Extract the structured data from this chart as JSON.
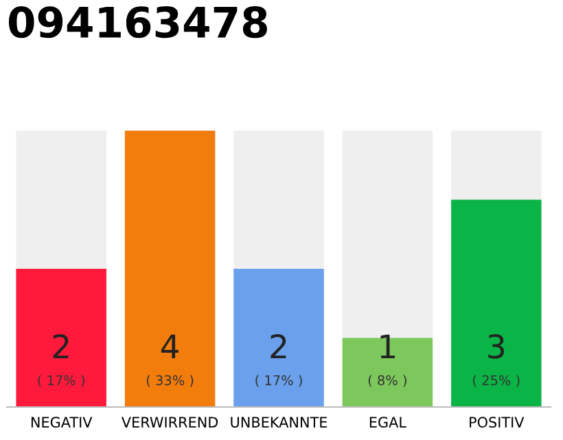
{
  "chart_data": {
    "type": "bar",
    "title": "094163478",
    "categories": [
      "NEGATIV",
      "VERWIRREND",
      "UNBEKANNTE",
      "EGAL",
      "POSITIV"
    ],
    "values": [
      2,
      4,
      2,
      1,
      3
    ],
    "colors": [
      "#ff1a3c",
      "#f27c0c",
      "#6aa0ec",
      "#7dc85c",
      "#0ab446"
    ],
    "ylim": [
      0,
      4
    ],
    "data_labels": true,
    "grid": false,
    "legend": false,
    "annotations": [
      {
        "text": "( 17% )",
        "x": "NEGATIV",
        "y": 0
      },
      {
        "text": "( 33% )",
        "x": "VERWIRREND",
        "y": 0
      },
      {
        "text": "( 17% )",
        "x": "UNBEKANNTE",
        "y": 0
      },
      {
        "text": "( 8% )",
        "x": "EGAL",
        "y": 0
      },
      {
        "text": "( 25% )",
        "x": "POSITIV",
        "y": 0
      }
    ]
  }
}
